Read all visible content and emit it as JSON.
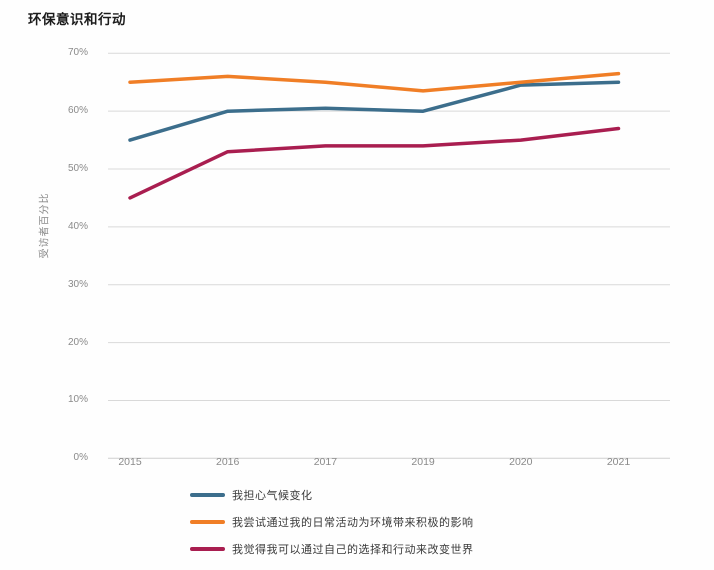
{
  "chart_data": {
    "type": "line",
    "title": "环保意识和行动",
    "xlabel": "",
    "ylabel": "受访者百分比",
    "categories": [
      "2015",
      "2016",
      "2017",
      "2019",
      "2020",
      "2021"
    ],
    "series": [
      {
        "name": "我担心气候变化",
        "color": "#3c6e8c",
        "values": [
          55,
          60,
          60.5,
          60,
          64.5,
          65
        ]
      },
      {
        "name": "我尝试通过我的日常活动为环境带来积极的影响",
        "color": "#f07e26",
        "values": [
          65,
          66,
          65,
          63.5,
          65,
          66.5
        ]
      },
      {
        "name": "我觉得我可以通过自己的选择和行动来改变世界",
        "color": "#a91e50",
        "values": [
          45,
          53,
          54,
          54,
          55,
          57
        ]
      }
    ],
    "ylim": [
      0,
      70
    ],
    "ytick_step": 10,
    "ytick_labels": [
      "0%",
      "10%",
      "20%",
      "30%",
      "40%",
      "50%",
      "60%",
      "70%"
    ],
    "grid": "horizontal",
    "gridline_color": "#d9d9d9",
    "legend_position": "bottom"
  }
}
